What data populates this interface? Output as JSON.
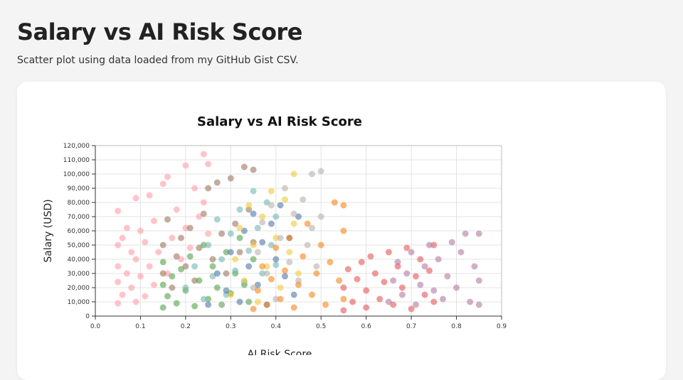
{
  "page": {
    "title": "Salary vs AI Risk Score",
    "subtitle": "Scatter plot using data loaded from my GitHub Gist CSV."
  },
  "chart_data": {
    "type": "scatter",
    "title": "Salary vs AI Risk Score",
    "xlabel": "AI Risk Score",
    "ylabel": "Salary (USD)",
    "xlim": [
      0,
      0.9
    ],
    "ylim": [
      0,
      120000
    ],
    "x_ticks": [
      "0.0",
      "0.1",
      "0.2",
      "0.3",
      "0.4",
      "0.5",
      "0.6",
      "0.7",
      "0.8",
      "0.9"
    ],
    "y_ticks": [
      "0",
      "10,000",
      "20,000",
      "30,000",
      "40,000",
      "50,000",
      "60,000",
      "70,000",
      "80,000",
      "90,000",
      "100,000",
      "110,000",
      "120,000"
    ],
    "grid": true,
    "legend": "none",
    "series": [
      {
        "color": "#ff9da6",
        "points": [
          [
            0.05,
            9000
          ],
          [
            0.05,
            24000
          ],
          [
            0.05,
            35000
          ],
          [
            0.05,
            50000
          ],
          [
            0.05,
            74000
          ],
          [
            0.06,
            15000
          ],
          [
            0.06,
            55000
          ],
          [
            0.07,
            30000
          ],
          [
            0.07,
            62000
          ],
          [
            0.08,
            20000
          ],
          [
            0.08,
            45000
          ],
          [
            0.09,
            10000
          ],
          [
            0.09,
            40000
          ],
          [
            0.09,
            83000
          ],
          [
            0.1,
            28000
          ],
          [
            0.1,
            60000
          ],
          [
            0.11,
            14000
          ],
          [
            0.11,
            52000
          ],
          [
            0.12,
            35000
          ],
          [
            0.12,
            85000
          ],
          [
            0.13,
            22000
          ],
          [
            0.13,
            67000
          ],
          [
            0.14,
            45000
          ],
          [
            0.15,
            93000
          ],
          [
            0.16,
            30000
          ],
          [
            0.16,
            98000
          ],
          [
            0.17,
            55000
          ],
          [
            0.18,
            75000
          ],
          [
            0.19,
            40000
          ],
          [
            0.2,
            106000
          ],
          [
            0.2,
            62000
          ],
          [
            0.21,
            48000
          ],
          [
            0.22,
            90000
          ],
          [
            0.23,
            70000
          ],
          [
            0.24,
            114000
          ],
          [
            0.24,
            80000
          ],
          [
            0.25,
            107000
          ],
          [
            0.25,
            58000
          ]
        ]
      },
      {
        "color": "#9d755d",
        "points": [
          [
            0.15,
            30000
          ],
          [
            0.15,
            50000
          ],
          [
            0.16,
            68000
          ],
          [
            0.17,
            20000
          ],
          [
            0.18,
            42000
          ],
          [
            0.19,
            55000
          ],
          [
            0.2,
            35000
          ],
          [
            0.21,
            62000
          ],
          [
            0.22,
            25000
          ],
          [
            0.23,
            48000
          ],
          [
            0.24,
            72000
          ],
          [
            0.25,
            90000
          ],
          [
            0.26,
            40000
          ],
          [
            0.27,
            94000
          ],
          [
            0.28,
            58000
          ],
          [
            0.29,
            30000
          ],
          [
            0.3,
            97000
          ],
          [
            0.31,
            65000
          ],
          [
            0.32,
            45000
          ],
          [
            0.33,
            105000
          ],
          [
            0.34,
            75000
          ],
          [
            0.35,
            103000
          ],
          [
            0.35,
            52000
          ]
        ]
      },
      {
        "color": "#54a24b",
        "points": [
          [
            0.15,
            6000
          ],
          [
            0.15,
            22000
          ],
          [
            0.15,
            38000
          ],
          [
            0.16,
            14000
          ],
          [
            0.17,
            28000
          ],
          [
            0.18,
            9000
          ],
          [
            0.19,
            33000
          ],
          [
            0.2,
            18000
          ],
          [
            0.21,
            42000
          ],
          [
            0.22,
            7000
          ],
          [
            0.23,
            25000
          ],
          [
            0.24,
            50000
          ],
          [
            0.25,
            12000
          ],
          [
            0.26,
            35000
          ],
          [
            0.27,
            20000
          ],
          [
            0.28,
            8000
          ],
          [
            0.29,
            45000
          ],
          [
            0.3,
            16000
          ],
          [
            0.31,
            30000
          ],
          [
            0.32,
            55000
          ],
          [
            0.33,
            22000
          ],
          [
            0.34,
            10000
          ],
          [
            0.35,
            40000
          ]
        ]
      },
      {
        "color": "#72b7b2",
        "points": [
          [
            0.2,
            20000
          ],
          [
            0.22,
            35000
          ],
          [
            0.24,
            12000
          ],
          [
            0.25,
            50000
          ],
          [
            0.26,
            28000
          ],
          [
            0.27,
            68000
          ],
          [
            0.28,
            40000
          ],
          [
            0.29,
            15000
          ],
          [
            0.3,
            58000
          ],
          [
            0.31,
            32000
          ],
          [
            0.32,
            75000
          ],
          [
            0.33,
            24000
          ],
          [
            0.34,
            46000
          ],
          [
            0.35,
            88000
          ],
          [
            0.36,
            62000
          ],
          [
            0.37,
            30000
          ],
          [
            0.38,
            80000
          ],
          [
            0.39,
            50000
          ],
          [
            0.4,
            36000
          ],
          [
            0.4,
            70000
          ]
        ]
      },
      {
        "color": "#4c78a8",
        "points": [
          [
            0.25,
            8000
          ],
          [
            0.27,
            30000
          ],
          [
            0.29,
            18000
          ],
          [
            0.3,
            45000
          ],
          [
            0.32,
            10000
          ],
          [
            0.33,
            60000
          ],
          [
            0.34,
            35000
          ],
          [
            0.35,
            72000
          ],
          [
            0.36,
            22000
          ],
          [
            0.37,
            52000
          ],
          [
            0.38,
            8000
          ],
          [
            0.39,
            65000
          ],
          [
            0.4,
            40000
          ],
          [
            0.41,
            78000
          ],
          [
            0.42,
            28000
          ],
          [
            0.43,
            55000
          ],
          [
            0.44,
            15000
          ],
          [
            0.45,
            70000
          ]
        ]
      },
      {
        "color": "#eeca3b",
        "points": [
          [
            0.3,
            15000
          ],
          [
            0.31,
            40000
          ],
          [
            0.32,
            62000
          ],
          [
            0.33,
            25000
          ],
          [
            0.34,
            78000
          ],
          [
            0.35,
            50000
          ],
          [
            0.36,
            10000
          ],
          [
            0.37,
            70000
          ],
          [
            0.38,
            35000
          ],
          [
            0.39,
            88000
          ],
          [
            0.4,
            55000
          ],
          [
            0.41,
            20000
          ],
          [
            0.42,
            82000
          ],
          [
            0.43,
            45000
          ],
          [
            0.44,
            100000
          ],
          [
            0.44,
            65000
          ],
          [
            0.45,
            30000
          ]
        ]
      },
      {
        "color": "#bab0ac",
        "points": [
          [
            0.35,
            20000
          ],
          [
            0.36,
            45000
          ],
          [
            0.37,
            66000
          ],
          [
            0.38,
            30000
          ],
          [
            0.39,
            78000
          ],
          [
            0.4,
            12000
          ],
          [
            0.41,
            55000
          ],
          [
            0.42,
            90000
          ],
          [
            0.43,
            38000
          ],
          [
            0.44,
            72000
          ],
          [
            0.45,
            25000
          ],
          [
            0.46,
            82000
          ],
          [
            0.47,
            50000
          ],
          [
            0.48,
            100000
          ],
          [
            0.48,
            62000
          ],
          [
            0.49,
            35000
          ],
          [
            0.5,
            102000
          ],
          [
            0.5,
            70000
          ]
        ]
      },
      {
        "color": "#f58518",
        "points": [
          [
            0.35,
            5000
          ],
          [
            0.36,
            18000
          ],
          [
            0.37,
            35000
          ],
          [
            0.38,
            8000
          ],
          [
            0.39,
            26000
          ],
          [
            0.4,
            48000
          ],
          [
            0.41,
            12000
          ],
          [
            0.42,
            32000
          ],
          [
            0.43,
            55000
          ],
          [
            0.44,
            6000
          ],
          [
            0.45,
            22000
          ],
          [
            0.46,
            42000
          ],
          [
            0.47,
            65000
          ],
          [
            0.48,
            15000
          ],
          [
            0.49,
            30000
          ],
          [
            0.5,
            50000
          ],
          [
            0.51,
            8000
          ],
          [
            0.52,
            38000
          ],
          [
            0.53,
            80000
          ],
          [
            0.54,
            25000
          ],
          [
            0.55,
            60000
          ],
          [
            0.55,
            78000
          ],
          [
            0.55,
            12000
          ]
        ]
      },
      {
        "color": "#e45756",
        "points": [
          [
            0.55,
            4000
          ],
          [
            0.55,
            20000
          ],
          [
            0.56,
            33000
          ],
          [
            0.57,
            10000
          ],
          [
            0.58,
            26000
          ],
          [
            0.59,
            38000
          ],
          [
            0.6,
            6000
          ],
          [
            0.6,
            18000
          ],
          [
            0.61,
            42000
          ],
          [
            0.62,
            30000
          ],
          [
            0.63,
            12000
          ],
          [
            0.64,
            24000
          ],
          [
            0.65,
            45000
          ],
          [
            0.66,
            8000
          ],
          [
            0.67,
            35000
          ],
          [
            0.68,
            20000
          ],
          [
            0.69,
            48000
          ],
          [
            0.7,
            5000
          ],
          [
            0.71,
            28000
          ],
          [
            0.72,
            40000
          ],
          [
            0.73,
            15000
          ],
          [
            0.74,
            32000
          ],
          [
            0.75,
            50000
          ],
          [
            0.75,
            10000
          ]
        ]
      },
      {
        "color": "#b279a2",
        "points": [
          [
            0.65,
            10000
          ],
          [
            0.66,
            25000
          ],
          [
            0.67,
            38000
          ],
          [
            0.68,
            15000
          ],
          [
            0.69,
            30000
          ],
          [
            0.7,
            45000
          ],
          [
            0.71,
            8000
          ],
          [
            0.72,
            22000
          ],
          [
            0.73,
            35000
          ],
          [
            0.74,
            50000
          ],
          [
            0.75,
            18000
          ],
          [
            0.76,
            40000
          ],
          [
            0.77,
            12000
          ],
          [
            0.78,
            28000
          ],
          [
            0.79,
            52000
          ],
          [
            0.8,
            20000
          ],
          [
            0.81,
            45000
          ],
          [
            0.82,
            58000
          ],
          [
            0.83,
            10000
          ],
          [
            0.84,
            35000
          ],
          [
            0.85,
            25000
          ],
          [
            0.85,
            58000
          ],
          [
            0.85,
            8000
          ]
        ]
      }
    ]
  }
}
